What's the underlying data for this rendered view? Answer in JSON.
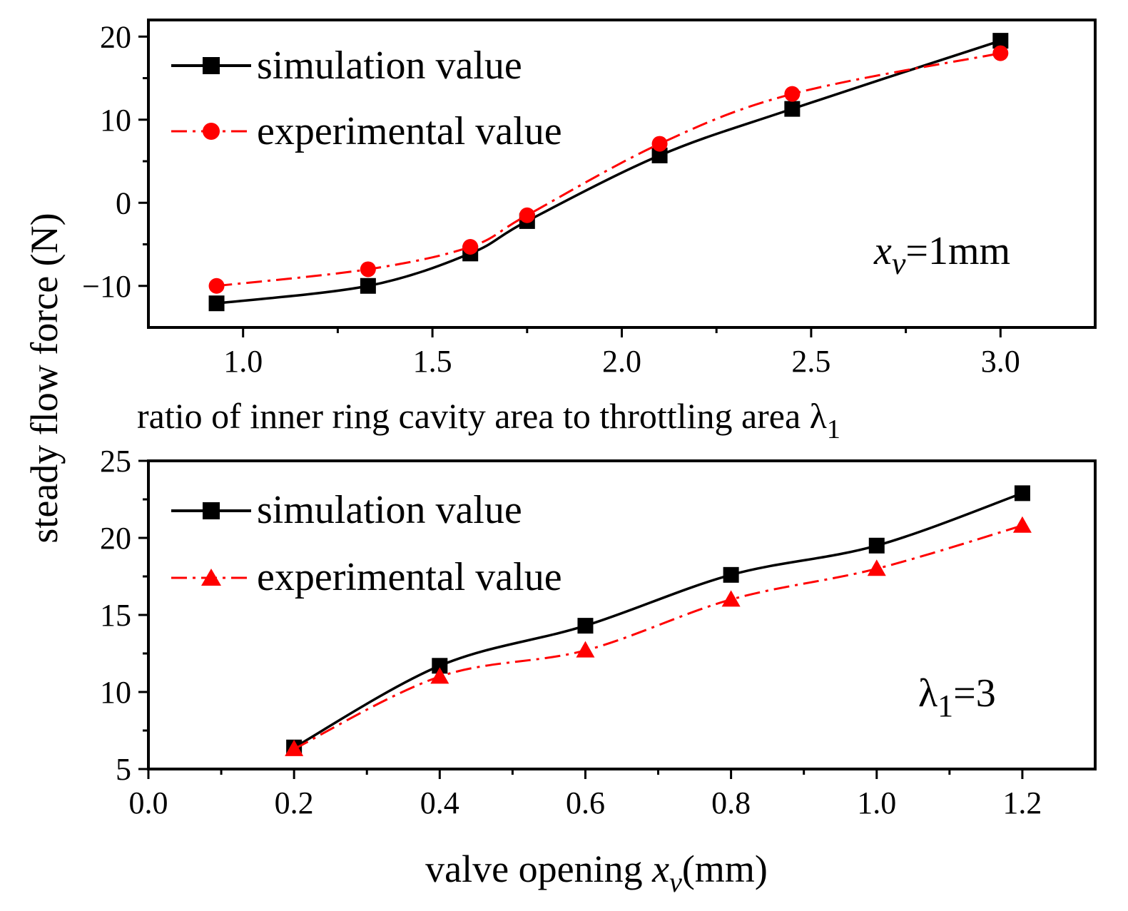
{
  "figure": {
    "shared_ylabel": "steady flow force (N)"
  },
  "chart_data": [
    {
      "type": "line",
      "xlabel": "ratio of inner ring cavity area to throttling area λ",
      "xlabel_sub": "1",
      "ylabel": "steady flow force (N)",
      "xlim": [
        0.75,
        3.25
      ],
      "ylim": [
        -15,
        22
      ],
      "xticks": [
        1.0,
        1.5,
        2.0,
        2.5,
        3.0
      ],
      "xtick_labels": [
        "1.0",
        "1.5",
        "2.0",
        "2.5",
        "3.0"
      ],
      "yticks": [
        -10,
        0,
        10,
        20
      ],
      "ytick_labels": [
        "−10",
        "0",
        "10",
        "20"
      ],
      "x": [
        0.93,
        1.33,
        1.6,
        1.75,
        2.1,
        2.45,
        3.0
      ],
      "series": [
        {
          "name": "simulation value",
          "color": "#000000",
          "marker": "square",
          "line": "solid",
          "values": [
            -12.1,
            -10.0,
            -6.1,
            -2.2,
            5.7,
            11.3,
            19.5
          ]
        },
        {
          "name": "experimental value",
          "color": "#ff0000",
          "marker": "circle",
          "line": "dashdot",
          "values": [
            -10.0,
            -8.0,
            -5.3,
            -1.5,
            7.1,
            13.1,
            18.0
          ]
        }
      ],
      "legend": {
        "placement": "top-left",
        "items": [
          "simulation value",
          "experimental value"
        ]
      },
      "annotation": {
        "main": "x",
        "sub": "v",
        "rest": "=1mm"
      }
    },
    {
      "type": "line",
      "xlabel_pre": "valve opening  ",
      "xlabel_var": "x",
      "xlabel_sub": "v",
      "xlabel_post": "(mm)",
      "xlim": [
        0.0,
        1.3
      ],
      "ylim": [
        5,
        25
      ],
      "xticks": [
        0.0,
        0.2,
        0.4,
        0.6,
        0.8,
        1.0,
        1.2
      ],
      "xtick_labels": [
        "0.0",
        "0.2",
        "0.4",
        "0.6",
        "0.8",
        "1.0",
        "1.2"
      ],
      "yticks": [
        5,
        10,
        15,
        20,
        25
      ],
      "ytick_labels": [
        "5",
        "10",
        "15",
        "20",
        "25"
      ],
      "x": [
        0.2,
        0.4,
        0.6,
        0.8,
        1.0,
        1.2
      ],
      "series": [
        {
          "name": "simulation value",
          "color": "#000000",
          "marker": "square",
          "line": "solid",
          "values": [
            6.4,
            11.7,
            14.3,
            17.6,
            19.5,
            22.9
          ]
        },
        {
          "name": "experimental value",
          "color": "#ff0000",
          "marker": "triangle",
          "line": "dashdot",
          "values": [
            6.3,
            11.0,
            12.7,
            16.0,
            18.0,
            20.8
          ]
        }
      ],
      "legend": {
        "placement": "top-left",
        "items": [
          "simulation value",
          "experimental value"
        ]
      },
      "annotation": {
        "main": "λ",
        "sub": "1",
        "rest": "=3"
      }
    }
  ]
}
